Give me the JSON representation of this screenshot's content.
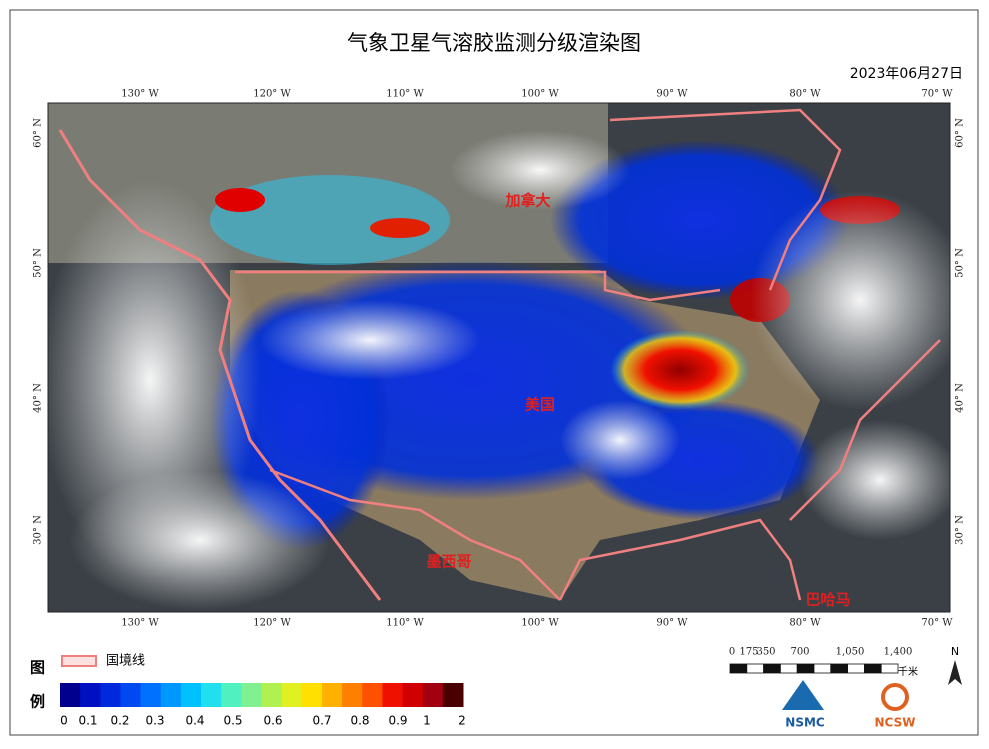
{
  "header": {
    "title": "气象卫星气溶胶监测分级渲染图",
    "date": "2023年06月27日"
  },
  "map": {
    "lon_labels": [
      "130° W",
      "120° W",
      "110° W",
      "100° W",
      "90° W",
      "80° W",
      "70° W"
    ],
    "lat_labels": [
      "60° N",
      "50° N",
      "40° N",
      "30° N"
    ],
    "places": [
      "加拿大",
      "美国",
      "墨西哥",
      "巴哈马"
    ]
  },
  "legend": {
    "title_top": "图",
    "title_bottom": "例",
    "border_label": "国境线",
    "colors": [
      "#00008c",
      "#0010c0",
      "#0028dc",
      "#0048f0",
      "#0070ff",
      "#0098ff",
      "#00c0ff",
      "#20e0f0",
      "#50f0c0",
      "#80f090",
      "#b0f050",
      "#e0f020",
      "#ffe000",
      "#ffb000",
      "#ff8000",
      "#ff5000",
      "#f01000",
      "#d00000",
      "#a00010",
      "#4a0000"
    ],
    "labels": [
      "0",
      "0.1",
      "0.2",
      "0.3",
      "0.4",
      "0.5",
      "0.6",
      "0.7",
      "0.8",
      "0.9",
      "1",
      "2"
    ]
  },
  "scale_bar": {
    "labels": [
      "0",
      "175",
      "350",
      "700",
      "1,050",
      "1,400"
    ],
    "unit": "千米",
    "north": "N"
  },
  "logos": [
    "NSMC",
    "NCSW"
  ]
}
